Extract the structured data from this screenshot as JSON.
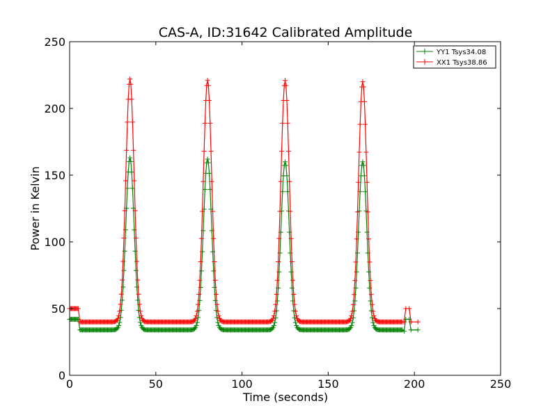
{
  "chart_data": {
    "type": "line",
    "title": "CAS-A, ID:31642 Calibrated Amplitude",
    "xlabel": "Time (seconds)",
    "ylabel": "Power in Kelvin",
    "xlim": [
      0,
      250
    ],
    "ylim": [
      0,
      250
    ],
    "xticks": [
      0,
      50,
      100,
      150,
      200,
      250
    ],
    "yticks": [
      0,
      50,
      100,
      150,
      200,
      250
    ],
    "grid": false,
    "legend_position": "top-right",
    "marker": "+",
    "series": [
      {
        "name": "YY1 Tsys34.08",
        "color": "#008000",
        "baseline": 34,
        "start_level": 42,
        "start_end": 5,
        "peaks": [
          {
            "x": 35,
            "y": 163
          },
          {
            "x": 80,
            "y": 162
          },
          {
            "x": 125,
            "y": 160
          },
          {
            "x": 170,
            "y": 160
          }
        ],
        "tail": [
          {
            "x": 194,
            "y": 33
          },
          {
            "x": 195,
            "y": 42
          },
          {
            "x": 197,
            "y": 42
          },
          {
            "x": 198,
            "y": 34
          },
          {
            "x": 202,
            "y": 34
          }
        ]
      },
      {
        "name": "XX1 Tsys38.86",
        "color": "#ff0000",
        "baseline": 40,
        "start_level": 50,
        "start_end": 5,
        "peaks": [
          {
            "x": 35,
            "y": 222
          },
          {
            "x": 80,
            "y": 221
          },
          {
            "x": 125,
            "y": 221
          },
          {
            "x": 170,
            "y": 220
          }
        ],
        "tail": [
          {
            "x": 194,
            "y": 40
          },
          {
            "x": 195,
            "y": 50
          },
          {
            "x": 197,
            "y": 50
          },
          {
            "x": 198,
            "y": 40
          },
          {
            "x": 202,
            "y": 40
          }
        ]
      }
    ]
  }
}
